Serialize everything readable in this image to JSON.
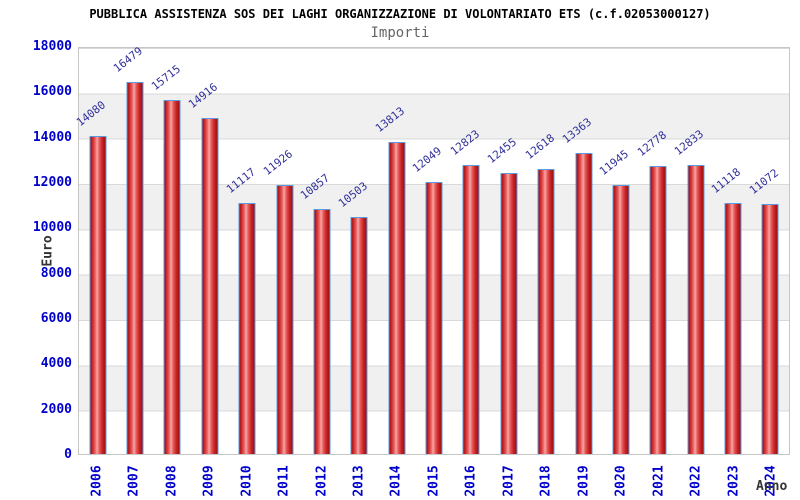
{
  "chart_data": {
    "type": "bar",
    "title": "PUBBLICA ASSISTENZA SOS DEI LAGHI ORGANIZZAZIONE DI VOLONTARIATO ETS (c.f.02053000127)",
    "subtitle": "Importi",
    "xlabel": "Anno",
    "ylabel": "Euro",
    "categories": [
      "2006",
      "2007",
      "2008",
      "2009",
      "2010",
      "2011",
      "2012",
      "2013",
      "2014",
      "2015",
      "2016",
      "2017",
      "2018",
      "2019",
      "2020",
      "2021",
      "2022",
      "2023",
      "2024"
    ],
    "values": [
      14080,
      16479,
      15715,
      14916,
      11117,
      11926,
      10857,
      10503,
      13813,
      12049,
      12823,
      12455,
      12618,
      13363,
      11945,
      12778,
      12833,
      11118,
      11072
    ],
    "ylim": [
      0,
      18000
    ],
    "yticks": [
      0,
      2000,
      4000,
      6000,
      8000,
      10000,
      12000,
      14000,
      16000,
      18000
    ],
    "grid": "horizontal gridlines every 2000 with alternating white and light-gray bands",
    "legend": "none",
    "value_labels": "shown above each bar, rotated diagonally",
    "x_tick_rotation": -90
  },
  "colors": {
    "axis_tick_text": "#0000cc",
    "value_label_text": "#32329b",
    "bar_fill_main": "#c62626",
    "bar_fill_highlight": "#f7a5a5",
    "bar_border": "#5b9be0",
    "band_gray": "#f0f0f0",
    "gridline": "#d9d9d9",
    "plot_border": "#c6c6c6",
    "title_text": "#000000",
    "subtitle_text": "#666666",
    "axis_title_text": "#333333"
  }
}
